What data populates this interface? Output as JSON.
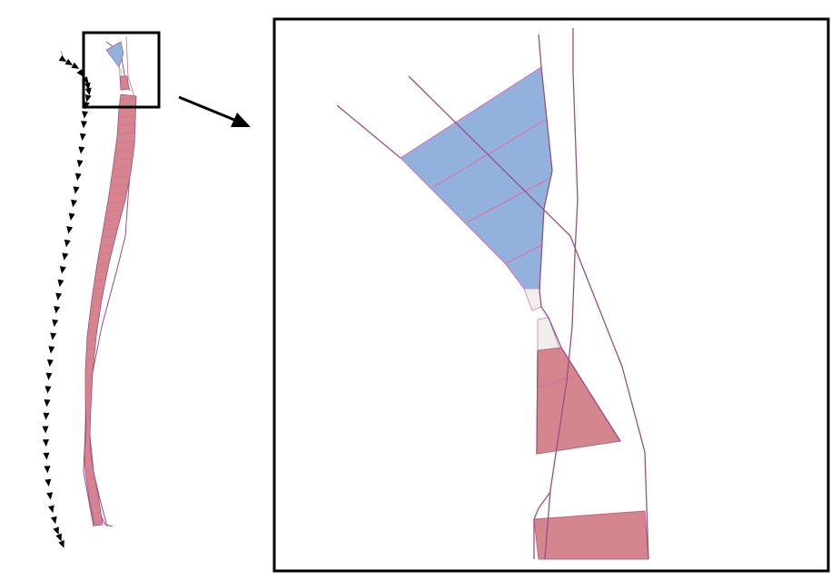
{
  "colors": {
    "background": "#ffffff",
    "frame": "#000000",
    "arrow": "#000000",
    "road_line": "#9a4f86",
    "road_line_light": "#c08ab0",
    "red_fill": "#d5858d",
    "red_stripe": "#e0699e",
    "blue_fill": "#92b1dc",
    "blue_stripe": "#e06ea6",
    "gap_fill": "#f1efec",
    "triangle_marker": "#000000"
  },
  "icons": {
    "markers": "triangle-marker-icon",
    "arrow": "right-arrow-icon"
  },
  "overview": {
    "marker_count": 44,
    "stripe_count": 50
  },
  "zoom": {
    "red_zones": 2,
    "blue_zones": 1
  }
}
